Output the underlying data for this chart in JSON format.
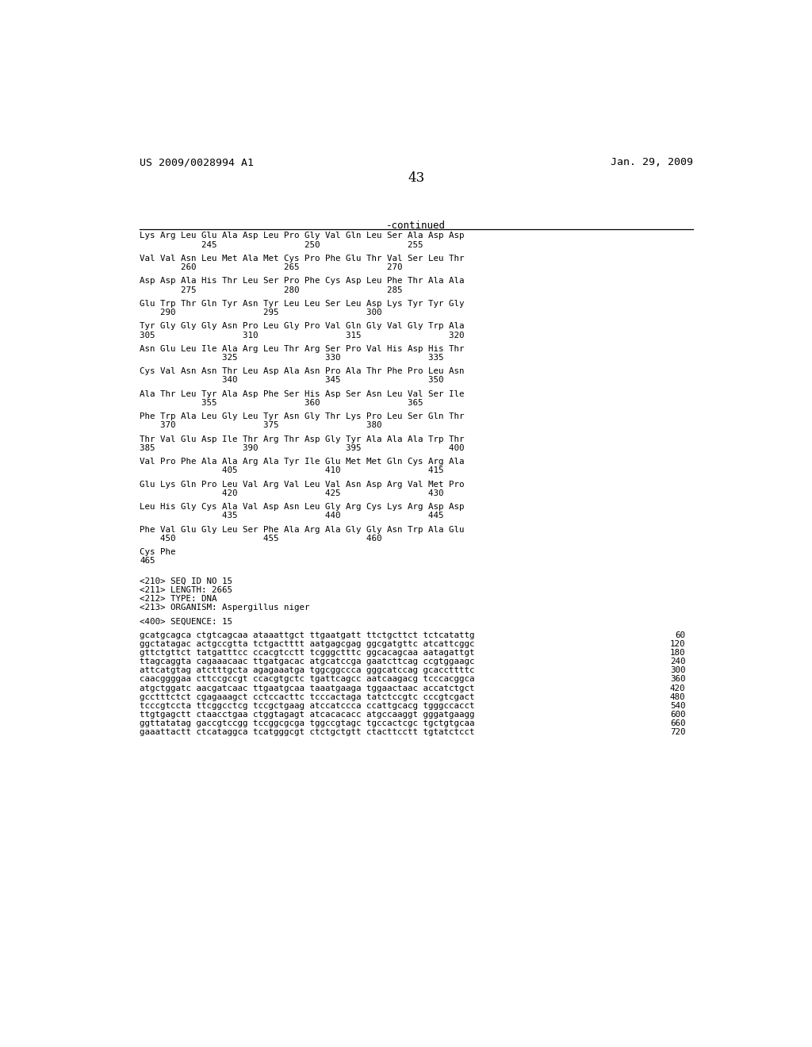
{
  "header_left": "US 2009/0028994 A1",
  "header_right": "Jan. 29, 2009",
  "page_number": "43",
  "continued_label": "-continued",
  "background_color": "#ffffff",
  "text_color": "#000000",
  "amino_acid_lines": [
    "Lys Arg Leu Glu Ala Asp Leu Pro Gly Val Gln Leu Ser Ala Asp Asp",
    "            245                 250                 255",
    "",
    "Val Val Asn Leu Met Ala Met Cys Pro Phe Glu Thr Val Ser Leu Thr",
    "        260                 265                 270",
    "",
    "Asp Asp Ala His Thr Leu Ser Pro Phe Cys Asp Leu Phe Thr Ala Ala",
    "        275                 280                 285",
    "",
    "Glu Trp Thr Gln Tyr Asn Tyr Leu Leu Ser Leu Asp Lys Tyr Tyr Gly",
    "    290                 295                 300",
    "",
    "Tyr Gly Gly Gly Asn Pro Leu Gly Pro Val Gln Gly Val Gly Trp Ala",
    "305                 310                 315                 320",
    "",
    "Asn Glu Leu Ile Ala Arg Leu Thr Arg Ser Pro Val His Asp His Thr",
    "                325                 330                 335",
    "",
    "Cys Val Asn Asn Thr Leu Asp Ala Asn Pro Ala Thr Phe Pro Leu Asn",
    "                340                 345                 350",
    "",
    "Ala Thr Leu Tyr Ala Asp Phe Ser His Asp Ser Asn Leu Val Ser Ile",
    "            355                 360                 365",
    "",
    "Phe Trp Ala Leu Gly Leu Tyr Asn Gly Thr Lys Pro Leu Ser Gln Thr",
    "    370                 375                 380",
    "",
    "Thr Val Glu Asp Ile Thr Arg Thr Asp Gly Tyr Ala Ala Ala Trp Thr",
    "385                 390                 395                 400",
    "",
    "Val Pro Phe Ala Ala Arg Ala Tyr Ile Glu Met Met Gln Cys Arg Ala",
    "                405                 410                 415",
    "",
    "Glu Lys Gln Pro Leu Val Arg Val Leu Val Asn Asp Arg Val Met Pro",
    "                420                 425                 430",
    "",
    "Leu His Gly Cys Ala Val Asp Asn Leu Gly Arg Cys Lys Arg Asp Asp",
    "                435                 440                 445",
    "",
    "Phe Val Glu Gly Leu Ser Phe Ala Arg Ala Gly Gly Asn Trp Ala Glu",
    "    450                 455                 460",
    "",
    "Cys Phe",
    "465"
  ],
  "seq_info_lines": [
    "",
    "<210> SEQ ID NO 15",
    "<211> LENGTH: 2665",
    "<212> TYPE: DNA",
    "<213> ORGANISM: Aspergillus niger",
    "",
    "<400> SEQUENCE: 15",
    ""
  ],
  "dna_lines": [
    {
      "seq": "gcatgcagca ctgtcagcaa ataaattgct ttgaatgatt ttctgcttct tctcatattg",
      "num": "60"
    },
    {
      "seq": "ggctatagac actgccgtta tctgactttt aatgagcgag ggcgatgttc atcattcggc",
      "num": "120"
    },
    {
      "seq": "gttctgttct tatgatttcc ccacgtcctt tcgggctttc ggcacagcaa aatagattgt",
      "num": "180"
    },
    {
      "seq": "ttagcaggta cagaaacaac ttgatgacac atgcatccga gaatcttcag ccgtggaagc",
      "num": "240"
    },
    {
      "seq": "attcatgtag atctttgcta agagaaatga tggcggccca gggcatccag gcaccttttc",
      "num": "300"
    },
    {
      "seq": "caacggggaa cttccgccgt ccacgtgctc tgattcagcc aatcaagacg tcccacggca",
      "num": "360"
    },
    {
      "seq": "atgctggatc aacgatcaac ttgaatgcaa taaatgaaga tggaactaac accatctgct",
      "num": "420"
    },
    {
      "seq": "gcctttctct cgagaaagct cctccacttc tcccactaga tatctccgtc cccgtcgact",
      "num": "480"
    },
    {
      "seq": "tcccgtccta ttcggcctcg tccgctgaag atccatccca ccattgcacg tgggccacct",
      "num": "540"
    },
    {
      "seq": "ttgtgagctt ctaacctgaa ctggtagagt atcacacacc atgccaaggt gggatgaagg",
      "num": "600"
    },
    {
      "seq": "ggttatatag gaccgtccgg tccggcgcga tggccgtagc tgccactcgc tgctgtgcaa",
      "num": "660"
    },
    {
      "seq": "gaaattactt ctcataggca tcatgggcgt ctctgctgtt ctacttcctt tgtatctcct",
      "num": "720"
    }
  ]
}
